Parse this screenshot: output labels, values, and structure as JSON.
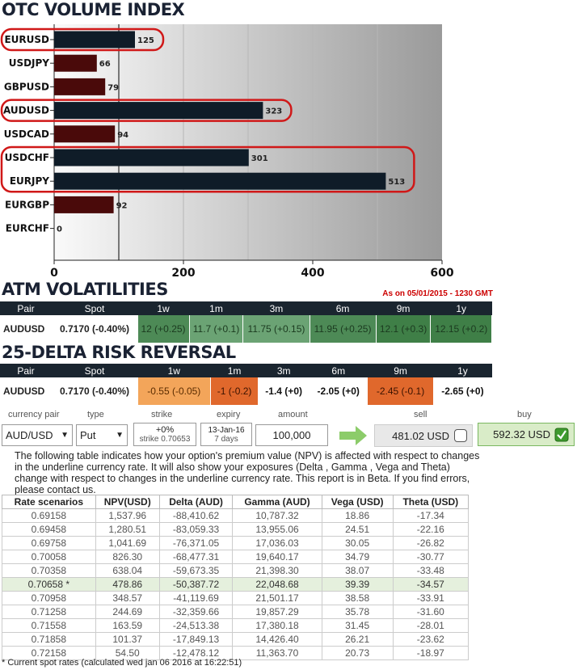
{
  "headings": {
    "otc": "OTC VOLUME INDEX",
    "atm": "ATM VOLATILITIES",
    "rr": "25-DELTA RISK REVERSAL",
    "as_of": "As on 05/01/2015 - 1230 GMT"
  },
  "chart_data": {
    "type": "bar",
    "orientation": "horizontal",
    "categories": [
      "EURUSD",
      "USDJPY",
      "GBPUSD",
      "AUDUSD",
      "USDCAD",
      "USDCHF",
      "EURJPY",
      "EURGBP",
      "EURCHF"
    ],
    "values": [
      125,
      66,
      79,
      323,
      94,
      301,
      513,
      92,
      0
    ],
    "xticks": [
      "0",
      "200",
      "400",
      "600"
    ],
    "xlim": [
      0,
      600
    ],
    "highlighted": [
      "EURUSD",
      "AUDUSD",
      "USDCHF",
      "EURJPY"
    ],
    "colors": {
      "dark": "#0f1c28",
      "maroon": "#4a0a0a",
      "highlight": "#d01818"
    }
  },
  "vol_table": {
    "headers": [
      "Pair",
      "Spot",
      "1w",
      "1m",
      "3m",
      "6m",
      "9m",
      "1y"
    ],
    "row": {
      "pair": "AUDUSD",
      "spot": "0.7170 (-0.40%)",
      "cells": [
        "12 (+0.25)",
        "11.7 (+0.1)",
        "11.75 (+0.15)",
        "11.95 (+0.25)",
        "12.1 (+0.3)",
        "12.15 (+0.2)"
      ]
    }
  },
  "rr_table": {
    "headers": [
      "Pair",
      "Spot",
      "1w",
      "1m",
      "3m",
      "6m",
      "9m",
      "1y"
    ],
    "row": {
      "pair": "AUDUSD",
      "spot": "0.7170 (-0.40%)",
      "cells": [
        "-0.55 (-0.05)",
        "-1 (-0.2)",
        "-1.4 (+0)",
        "-2.05 (+0)",
        "-2.45 (-0.1)",
        "-2.65 (+0)"
      ]
    }
  },
  "calculator": {
    "labels": {
      "pair": "currency pair",
      "type": "type",
      "strike": "strike",
      "expiry": "expiry",
      "amount": "amount",
      "sell": "sell",
      "buy": "buy"
    },
    "pair": "AUD/USD",
    "type": "Put",
    "strike_pct": "+0%",
    "strike_val": "strike 0.70653",
    "expiry_date": "13-Jan-16",
    "expiry_days": "7 days",
    "amount": "100,000",
    "sell": "481.02 USD",
    "buy": "592.32 USD"
  },
  "note": "The following table indicates how your option's premium value (NPV) is affected with respect to changes in the underline currency rate. It will also show your exposures (Delta , Gamma , Vega and Theta) change with respect to changes in the underline currency rate. This report is in Beta. If you find errors, please contact us.",
  "scenarios": {
    "headers": [
      "Rate scenarios",
      "NPV(USD)",
      "Delta (AUD)",
      "Gamma (AUD)",
      "Vega (USD)",
      "Theta (USD)"
    ],
    "rows": [
      [
        "0.69158",
        "1,537.96",
        "-88,410.62",
        "10,787.32",
        "18.86",
        "-17.34"
      ],
      [
        "0.69458",
        "1,280.51",
        "-83,059.33",
        "13,955.06",
        "24.51",
        "-22.16"
      ],
      [
        "0.69758",
        "1,041.69",
        "-76,371.05",
        "17,036.03",
        "30.05",
        "-26.82"
      ],
      [
        "0.70058",
        "826.30",
        "-68,477.31",
        "19,640.17",
        "34.79",
        "-30.77"
      ],
      [
        "0.70358",
        "638.04",
        "-59,673.35",
        "21,398.30",
        "38.07",
        "-33.48"
      ],
      [
        "0.70658 *",
        "478.86",
        "-50,387.72",
        "22,048.68",
        "39.39",
        "-34.57"
      ],
      [
        "0.70958",
        "348.57",
        "-41,119.69",
        "21,501.17",
        "38.58",
        "-33.91"
      ],
      [
        "0.71258",
        "244.69",
        "-32,359.66",
        "19,857.29",
        "35.78",
        "-31.60"
      ],
      [
        "0.71558",
        "163.59",
        "-24,513.38",
        "17,380.18",
        "31.45",
        "-28.01"
      ],
      [
        "0.71858",
        "101.37",
        "-17,849.13",
        "14,426.40",
        "26.21",
        "-23.62"
      ],
      [
        "0.72158",
        "54.50",
        "-12,478.12",
        "11,363.70",
        "20.73",
        "-18.97"
      ]
    ],
    "highlight_row": 5
  },
  "footer": "* Current spot rates (calculated wed jan 06 2016 at 16:22:51)"
}
